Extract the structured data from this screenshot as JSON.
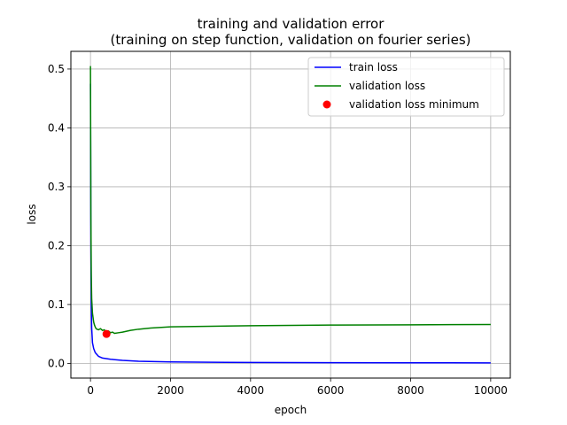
{
  "chart_data": {
    "type": "line",
    "title": "training and validation error",
    "subtitle": "(training on step function, validation on fourier series)",
    "xlabel": "epoch",
    "ylabel": "loss",
    "xlim": [
      -490,
      10490
    ],
    "ylim": [
      -0.025,
      0.53
    ],
    "xticks": [
      {
        "value": 0,
        "label": "0"
      },
      {
        "value": 2000,
        "label": "2000"
      },
      {
        "value": 4000,
        "label": "4000"
      },
      {
        "value": 6000,
        "label": "6000"
      },
      {
        "value": 8000,
        "label": "8000"
      },
      {
        "value": 10000,
        "label": "10000"
      }
    ],
    "yticks": [
      {
        "value": 0.0,
        "label": "0.0"
      },
      {
        "value": 0.1,
        "label": "0.1"
      },
      {
        "value": 0.2,
        "label": "0.2"
      },
      {
        "value": 0.3,
        "label": "0.3"
      },
      {
        "value": 0.4,
        "label": "0.4"
      },
      {
        "value": 0.5,
        "label": "0.5"
      }
    ],
    "grid": true,
    "legend_position": "top-right",
    "series": [
      {
        "name": "train loss",
        "color": "#0000ff",
        "x": [
          0,
          5,
          10,
          20,
          30,
          50,
          80,
          120,
          200,
          300,
          500,
          800,
          1200,
          2000,
          3000,
          4000,
          6000,
          8000,
          10000
        ],
        "y": [
          0.475,
          0.35,
          0.2,
          0.1,
          0.06,
          0.035,
          0.025,
          0.018,
          0.012,
          0.009,
          0.007,
          0.005,
          0.0035,
          0.0025,
          0.0018,
          0.0015,
          0.0012,
          0.001,
          0.0008
        ]
      },
      {
        "name": "validation loss",
        "color": "#008000",
        "x": [
          0,
          5,
          10,
          20,
          30,
          50,
          80,
          100,
          130,
          160,
          200,
          250,
          300,
          350,
          400,
          450,
          500,
          550,
          600,
          700,
          800,
          1000,
          1200,
          1500,
          2000,
          3000,
          4000,
          6000,
          8000,
          10000
        ],
        "y": [
          0.505,
          0.38,
          0.25,
          0.15,
          0.11,
          0.085,
          0.07,
          0.065,
          0.06,
          0.058,
          0.057,
          0.059,
          0.056,
          0.057,
          0.05,
          0.055,
          0.052,
          0.053,
          0.051,
          0.052,
          0.053,
          0.056,
          0.058,
          0.06,
          0.062,
          0.063,
          0.064,
          0.065,
          0.0655,
          0.066
        ]
      }
    ],
    "markers": [
      {
        "name": "validation loss minimum",
        "color": "#ff0000",
        "x": 400,
        "y": 0.05
      }
    ]
  }
}
